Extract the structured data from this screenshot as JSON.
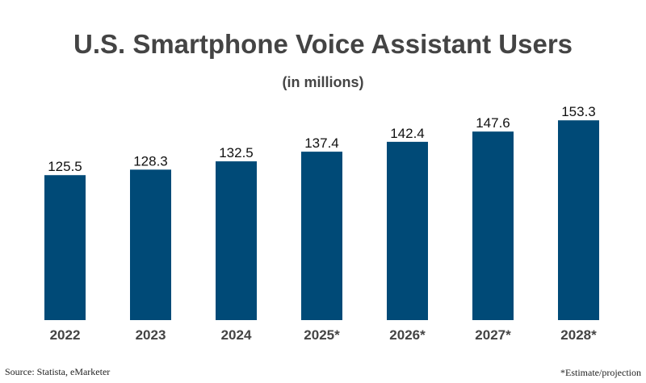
{
  "chart_data": {
    "type": "bar",
    "title": "U.S. Smartphone Voice Assistant Users",
    "subtitle": "(in millions)",
    "categories": [
      "2022",
      "2023",
      "2024",
      "2025*",
      "2026*",
      "2027*",
      "2028*"
    ],
    "values": [
      125.5,
      128.3,
      132.5,
      137.4,
      142.4,
      147.6,
      153.3
    ],
    "xlabel": "",
    "ylabel": "",
    "ylim": [
      52,
      160
    ],
    "grid": false,
    "bar_color": "#004a77",
    "source": "Source: Statista, eMarketer",
    "note": "*Estimate/projection"
  }
}
